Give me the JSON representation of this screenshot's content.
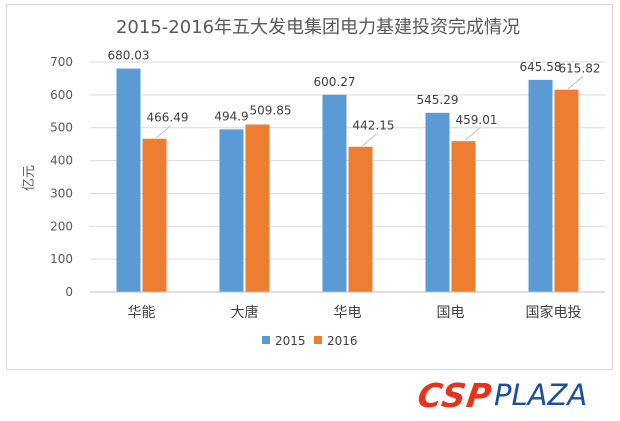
{
  "chart_data": {
    "type": "bar",
    "title": "2015-2016年五大发电集团电力基建投资完成情况",
    "ylabel": "亿元",
    "xlabel": "",
    "ylim": [
      0,
      700
    ],
    "yticks": [
      0,
      100,
      200,
      300,
      400,
      500,
      600,
      700
    ],
    "categories": [
      "华能",
      "大唐",
      "华电",
      "国电",
      "国家电投"
    ],
    "series": [
      {
        "name": "2015",
        "color": "#5b9bd5",
        "values": [
          680.03,
          494.9,
          600.27,
          545.29,
          645.58
        ],
        "labels": [
          "680.03",
          "494.9",
          "600.27",
          "545.29",
          "645.58"
        ]
      },
      {
        "name": "2016",
        "color": "#ed7d31",
        "values": [
          466.49,
          509.85,
          442.15,
          459.01,
          615.82
        ],
        "labels": [
          "466.49",
          "509.85",
          "442.15",
          "459.01",
          "615.82"
        ]
      }
    ],
    "legend": "bottom",
    "grid": true
  },
  "logo": {
    "part1": "CSP",
    "part2": "PLAZA"
  }
}
